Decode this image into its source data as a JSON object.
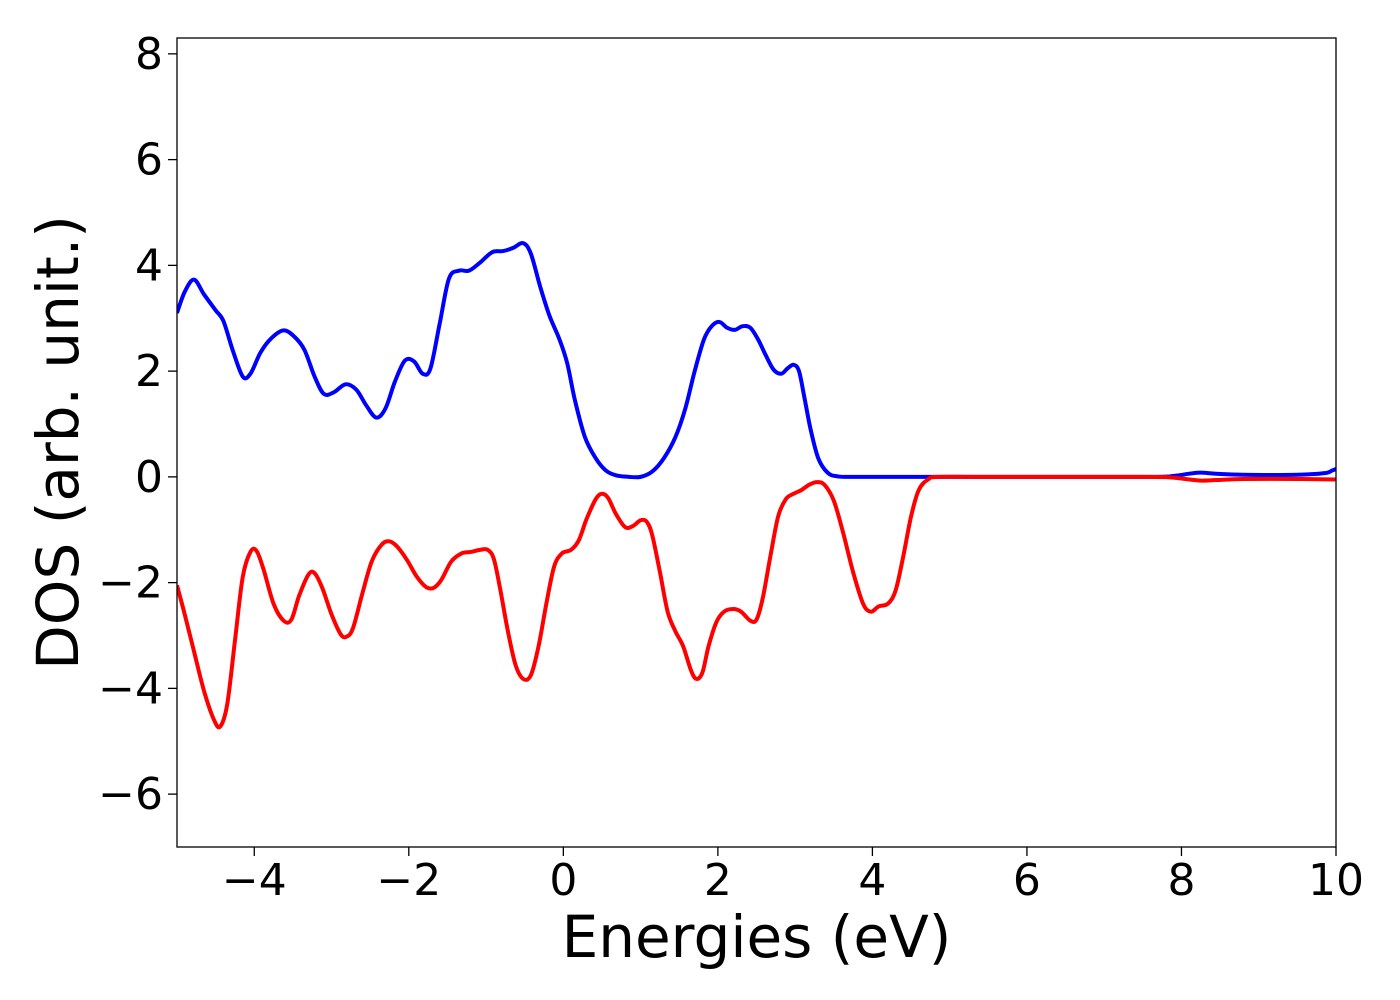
{
  "chart_data": {
    "type": "line",
    "xlabel": "Energies (eV)",
    "ylabel": "DOS (arb. unit.)",
    "xlim": [
      -5,
      10
    ],
    "ylim": [
      -7,
      8.3
    ],
    "grid": false,
    "legend": "none",
    "xticks": [
      -4,
      -2,
      0,
      2,
      4,
      6,
      8,
      10
    ],
    "yticks": [
      -6,
      -4,
      -2,
      0,
      2,
      4,
      6,
      8
    ],
    "xtick_labels": [
      "−4",
      "−2",
      "0",
      "2",
      "4",
      "6",
      "8",
      "10"
    ],
    "ytick_labels": [
      "−6",
      "−4",
      "−2",
      "0",
      "2",
      "4",
      "6",
      "8"
    ],
    "series": [
      {
        "color": "#0000ff",
        "points": [
          [
            -5.0,
            3.1
          ],
          [
            -4.9,
            3.5
          ],
          [
            -4.78,
            3.73
          ],
          [
            -4.65,
            3.45
          ],
          [
            -4.5,
            3.15
          ],
          [
            -4.4,
            2.95
          ],
          [
            -4.28,
            2.4
          ],
          [
            -4.15,
            1.9
          ],
          [
            -4.05,
            1.95
          ],
          [
            -3.92,
            2.35
          ],
          [
            -3.78,
            2.62
          ],
          [
            -3.62,
            2.77
          ],
          [
            -3.48,
            2.65
          ],
          [
            -3.35,
            2.4
          ],
          [
            -3.22,
            1.9
          ],
          [
            -3.1,
            1.57
          ],
          [
            -2.97,
            1.6
          ],
          [
            -2.82,
            1.75
          ],
          [
            -2.68,
            1.65
          ],
          [
            -2.55,
            1.35
          ],
          [
            -2.42,
            1.12
          ],
          [
            -2.3,
            1.3
          ],
          [
            -2.18,
            1.8
          ],
          [
            -2.05,
            2.2
          ],
          [
            -1.93,
            2.18
          ],
          [
            -1.82,
            1.95
          ],
          [
            -1.72,
            2.05
          ],
          [
            -1.6,
            2.9
          ],
          [
            -1.48,
            3.75
          ],
          [
            -1.35,
            3.9
          ],
          [
            -1.22,
            3.9
          ],
          [
            -1.08,
            4.05
          ],
          [
            -0.92,
            4.25
          ],
          [
            -0.78,
            4.27
          ],
          [
            -0.65,
            4.33
          ],
          [
            -0.52,
            4.42
          ],
          [
            -0.42,
            4.22
          ],
          [
            -0.3,
            3.6
          ],
          [
            -0.18,
            3.05
          ],
          [
            -0.05,
            2.6
          ],
          [
            0.05,
            2.15
          ],
          [
            0.15,
            1.45
          ],
          [
            0.28,
            0.75
          ],
          [
            0.42,
            0.35
          ],
          [
            0.55,
            0.12
          ],
          [
            0.68,
            0.03
          ],
          [
            0.85,
            0.0
          ],
          [
            1.0,
            0.0
          ],
          [
            1.15,
            0.1
          ],
          [
            1.3,
            0.35
          ],
          [
            1.45,
            0.75
          ],
          [
            1.58,
            1.3
          ],
          [
            1.7,
            2.0
          ],
          [
            1.82,
            2.6
          ],
          [
            1.92,
            2.85
          ],
          [
            2.02,
            2.93
          ],
          [
            2.12,
            2.82
          ],
          [
            2.22,
            2.78
          ],
          [
            2.32,
            2.85
          ],
          [
            2.42,
            2.82
          ],
          [
            2.52,
            2.6
          ],
          [
            2.62,
            2.3
          ],
          [
            2.72,
            2.03
          ],
          [
            2.82,
            1.95
          ],
          [
            2.9,
            2.05
          ],
          [
            2.98,
            2.12
          ],
          [
            3.05,
            2.0
          ],
          [
            3.12,
            1.5
          ],
          [
            3.2,
            0.9
          ],
          [
            3.3,
            0.35
          ],
          [
            3.42,
            0.08
          ],
          [
            3.55,
            0.01
          ],
          [
            3.8,
            0.0
          ],
          [
            5.0,
            0.0
          ],
          [
            7.5,
            0.0
          ],
          [
            7.9,
            0.02
          ],
          [
            8.1,
            0.06
          ],
          [
            8.25,
            0.08
          ],
          [
            8.45,
            0.06
          ],
          [
            8.8,
            0.04
          ],
          [
            9.5,
            0.04
          ],
          [
            9.85,
            0.07
          ],
          [
            9.95,
            0.12
          ],
          [
            10.0,
            0.15
          ]
        ]
      },
      {
        "color": "#ff0000",
        "points": [
          [
            -5.0,
            -2.05
          ],
          [
            -4.9,
            -2.6
          ],
          [
            -4.78,
            -3.3
          ],
          [
            -4.65,
            -4.05
          ],
          [
            -4.52,
            -4.6
          ],
          [
            -4.44,
            -4.72
          ],
          [
            -4.35,
            -4.3
          ],
          [
            -4.25,
            -3.1
          ],
          [
            -4.15,
            -1.9
          ],
          [
            -4.05,
            -1.42
          ],
          [
            -3.97,
            -1.4
          ],
          [
            -3.88,
            -1.75
          ],
          [
            -3.75,
            -2.4
          ],
          [
            -3.62,
            -2.72
          ],
          [
            -3.52,
            -2.7
          ],
          [
            -3.42,
            -2.25
          ],
          [
            -3.3,
            -1.85
          ],
          [
            -3.22,
            -1.82
          ],
          [
            -3.12,
            -2.1
          ],
          [
            -3.0,
            -2.6
          ],
          [
            -2.88,
            -2.98
          ],
          [
            -2.8,
            -3.02
          ],
          [
            -2.72,
            -2.85
          ],
          [
            -2.6,
            -2.2
          ],
          [
            -2.48,
            -1.6
          ],
          [
            -2.35,
            -1.28
          ],
          [
            -2.25,
            -1.22
          ],
          [
            -2.15,
            -1.32
          ],
          [
            -2.02,
            -1.58
          ],
          [
            -1.9,
            -1.88
          ],
          [
            -1.78,
            -2.08
          ],
          [
            -1.68,
            -2.1
          ],
          [
            -1.58,
            -1.95
          ],
          [
            -1.45,
            -1.6
          ],
          [
            -1.32,
            -1.45
          ],
          [
            -1.2,
            -1.42
          ],
          [
            -1.08,
            -1.38
          ],
          [
            -0.98,
            -1.38
          ],
          [
            -0.9,
            -1.55
          ],
          [
            -0.82,
            -2.1
          ],
          [
            -0.72,
            -2.9
          ],
          [
            -0.62,
            -3.55
          ],
          [
            -0.52,
            -3.82
          ],
          [
            -0.42,
            -3.75
          ],
          [
            -0.32,
            -3.2
          ],
          [
            -0.22,
            -2.4
          ],
          [
            -0.12,
            -1.7
          ],
          [
            -0.02,
            -1.45
          ],
          [
            0.1,
            -1.38
          ],
          [
            0.2,
            -1.2
          ],
          [
            0.3,
            -0.8
          ],
          [
            0.42,
            -0.42
          ],
          [
            0.5,
            -0.32
          ],
          [
            0.58,
            -0.4
          ],
          [
            0.68,
            -0.7
          ],
          [
            0.8,
            -0.95
          ],
          [
            0.9,
            -0.93
          ],
          [
            1.0,
            -0.82
          ],
          [
            1.08,
            -0.85
          ],
          [
            1.15,
            -1.1
          ],
          [
            1.25,
            -1.8
          ],
          [
            1.35,
            -2.55
          ],
          [
            1.45,
            -2.92
          ],
          [
            1.55,
            -3.2
          ],
          [
            1.65,
            -3.65
          ],
          [
            1.72,
            -3.82
          ],
          [
            1.8,
            -3.7
          ],
          [
            1.88,
            -3.2
          ],
          [
            1.98,
            -2.75
          ],
          [
            2.08,
            -2.55
          ],
          [
            2.2,
            -2.5
          ],
          [
            2.3,
            -2.55
          ],
          [
            2.42,
            -2.72
          ],
          [
            2.5,
            -2.7
          ],
          [
            2.58,
            -2.3
          ],
          [
            2.68,
            -1.5
          ],
          [
            2.78,
            -0.75
          ],
          [
            2.88,
            -0.42
          ],
          [
            2.98,
            -0.32
          ],
          [
            3.08,
            -0.25
          ],
          [
            3.18,
            -0.15
          ],
          [
            3.28,
            -0.1
          ],
          [
            3.38,
            -0.15
          ],
          [
            3.5,
            -0.45
          ],
          [
            3.62,
            -1.05
          ],
          [
            3.75,
            -1.8
          ],
          [
            3.88,
            -2.4
          ],
          [
            3.98,
            -2.55
          ],
          [
            4.08,
            -2.45
          ],
          [
            4.2,
            -2.4
          ],
          [
            4.3,
            -2.15
          ],
          [
            4.4,
            -1.5
          ],
          [
            4.5,
            -0.75
          ],
          [
            4.6,
            -0.25
          ],
          [
            4.72,
            -0.05
          ],
          [
            4.85,
            0.0
          ],
          [
            5.5,
            0.0
          ],
          [
            7.5,
            0.0
          ],
          [
            7.85,
            -0.01
          ],
          [
            8.05,
            -0.04
          ],
          [
            8.25,
            -0.07
          ],
          [
            8.45,
            -0.06
          ],
          [
            8.8,
            -0.04
          ],
          [
            9.5,
            -0.04
          ],
          [
            10.0,
            -0.05
          ]
        ]
      }
    ]
  }
}
